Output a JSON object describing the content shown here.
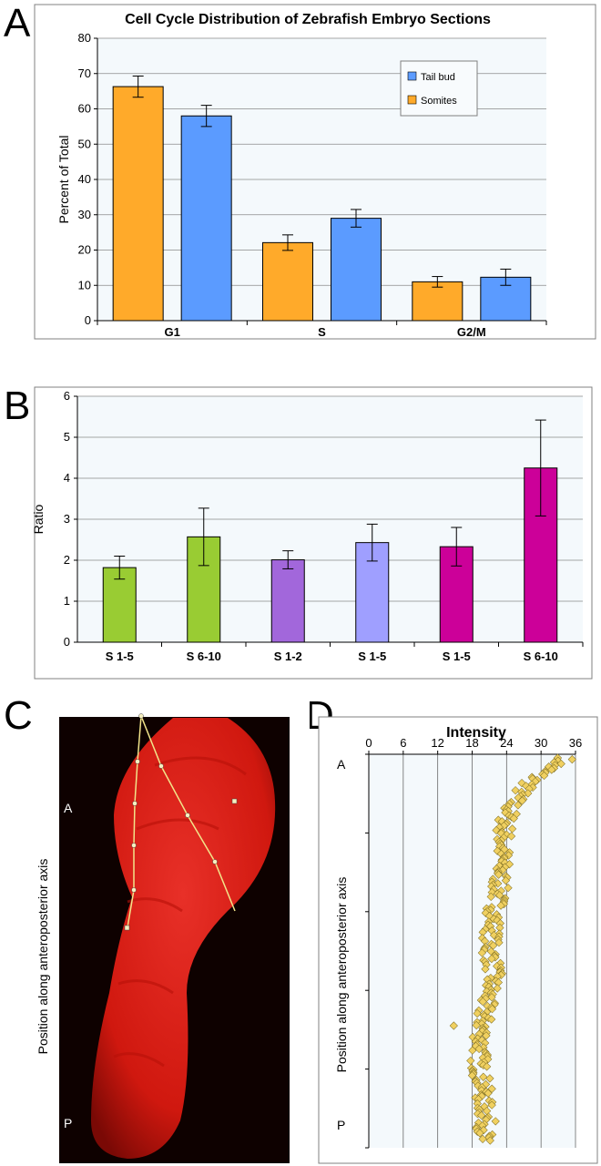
{
  "panels": {
    "A": "A",
    "B": "B",
    "C": "C",
    "D": "D"
  },
  "chart_data": [
    {
      "panel": "A",
      "type": "bar",
      "title": "Cell Cycle Distribution of Zebrafish Embryo Sections",
      "xlabel": "",
      "ylabel": "Percent of Total",
      "ylim": [
        0,
        80
      ],
      "yticks": [
        0,
        10,
        20,
        30,
        40,
        50,
        60,
        70,
        80
      ],
      "grid": true,
      "legend_position": "top-right",
      "categories": [
        "G1",
        "S",
        "G2/M"
      ],
      "series": [
        {
          "name": "Somites",
          "color": "#FFAA2A",
          "values": [
            66.3,
            22.1,
            11.0
          ],
          "errors": [
            3.0,
            2.2,
            1.5
          ]
        },
        {
          "name": "Tail bud",
          "color": "#5B9BFF",
          "values": [
            58.0,
            29.0,
            12.3
          ],
          "errors": [
            3.0,
            2.5,
            2.3
          ]
        }
      ],
      "legend": [
        {
          "label": "Tail bud",
          "color": "#5B9BFF"
        },
        {
          "label": "Somites",
          "color": "#FFAA2A"
        }
      ]
    },
    {
      "panel": "B",
      "type": "bar",
      "title": "",
      "xlabel": "",
      "ylabel": "Ratio",
      "ylim": [
        0,
        6
      ],
      "yticks": [
        0,
        1,
        2,
        3,
        4,
        5,
        6
      ],
      "grid": true,
      "categories": [
        "S 1-5",
        "S 6-10",
        "S 1-2",
        "S 1-5",
        "S 1-5",
        "S 6-10"
      ],
      "values": [
        1.82,
        2.57,
        2.01,
        2.43,
        2.33,
        4.25
      ],
      "errors": [
        0.28,
        0.7,
        0.22,
        0.45,
        0.47,
        1.17
      ],
      "colors": [
        "#99CC33",
        "#99CC33",
        "#A267DB",
        "#9F9FFF",
        "#CC0099",
        "#CC0099"
      ]
    },
    {
      "panel": "C",
      "type": "image",
      "ylabel": "Position along anteroposterior axis",
      "top_label": "A",
      "bottom_label": "P"
    },
    {
      "panel": "D",
      "type": "scatter",
      "title": "Intensity",
      "ylabel": "Position along anteroposterior axis",
      "xlim": [
        0,
        36
      ],
      "xticks": [
        0,
        6,
        12,
        18,
        24,
        30,
        36
      ],
      "top_label": "A",
      "bottom_label": "P",
      "grid": true,
      "marker_color": "#F0D060",
      "profile_depth": [
        0,
        0.04,
        0.08,
        0.12,
        0.16,
        0.2,
        0.25,
        0.3,
        0.35,
        0.4,
        0.45,
        0.5,
        0.55,
        0.6,
        0.65,
        0.7,
        0.75,
        0.8,
        0.85,
        0.9,
        0.95,
        1.0
      ],
      "profile_intensity": [
        34.5,
        30.0,
        27.0,
        25.0,
        24.0,
        23.5,
        23.2,
        23.0,
        22.6,
        22.0,
        21.5,
        21.0,
        21.8,
        21.2,
        20.2,
        19.8,
        19.5,
        19.2,
        19.8,
        20.0,
        20.5,
        20.0
      ],
      "outliers": [
        {
          "depth": 0.7,
          "intensity": 14.8
        }
      ]
    }
  ]
}
